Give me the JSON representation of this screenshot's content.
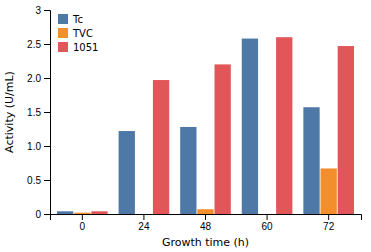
{
  "chart_data": {
    "type": "bar",
    "categories": [
      "0",
      "24",
      "48",
      "60",
      "72"
    ],
    "series": [
      {
        "name": "Tc",
        "values": [
          0.04,
          1.22,
          1.28,
          2.58,
          1.57
        ]
      },
      {
        "name": "TVC",
        "values": [
          0.02,
          0.0,
          0.07,
          0.0,
          0.67
        ]
      },
      {
        "name": "1051",
        "values": [
          0.04,
          1.97,
          2.2,
          2.6,
          2.47
        ]
      }
    ],
    "xlabel": "Growth time (h)",
    "ylabel": "Activity (U/mL)",
    "ylim": [
      0,
      3
    ],
    "yticks": [
      0,
      0.5,
      {
        "value": 1,
        "label": "1.0"
      },
      1.5,
      {
        "value": 2,
        "label": "2.0"
      },
      2.5,
      3
    ],
    "legend": "upper left"
  }
}
